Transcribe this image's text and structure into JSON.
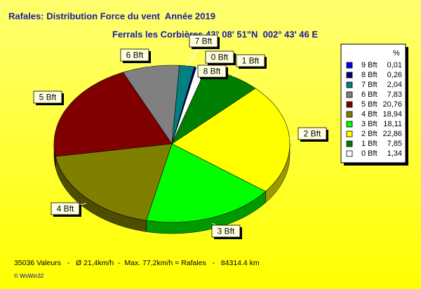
{
  "chart_data": {
    "type": "pie3d",
    "title": "Rafales: Distribution Force du vent  Année 2019",
    "subtitle": "Ferrals les Corbières 43° 08' 51\"N  002° 43' 46 E",
    "legend_header": "%",
    "categories": [
      "9 Bft",
      "8 Bft",
      "7 Bft",
      "6 Bft",
      "5 Bft",
      "4 Bft",
      "3 Bft",
      "2 Bft",
      "1 Bft",
      "0 Bft"
    ],
    "values": [
      0.01,
      0.26,
      2.04,
      7.83,
      20.76,
      18.94,
      18.11,
      22.86,
      7.85,
      1.34
    ],
    "value_labels": [
      "0,01",
      "0,26",
      "2,04",
      "7,83",
      "20,76",
      "18,94",
      "18,11",
      "22,86",
      "7,85",
      "1,34"
    ],
    "colors": [
      "#0000ff",
      "#000080",
      "#008080",
      "#808080",
      "#800000",
      "#808000",
      "#00ff00",
      "#ffff00",
      "#008000",
      "#ffffff"
    ],
    "footer": "35036 Valeurs   -   Ø 21,4km/h  -  Max. 77,2km/h = Rafales   -   84314.4 km",
    "credit": "© WsWin32"
  }
}
